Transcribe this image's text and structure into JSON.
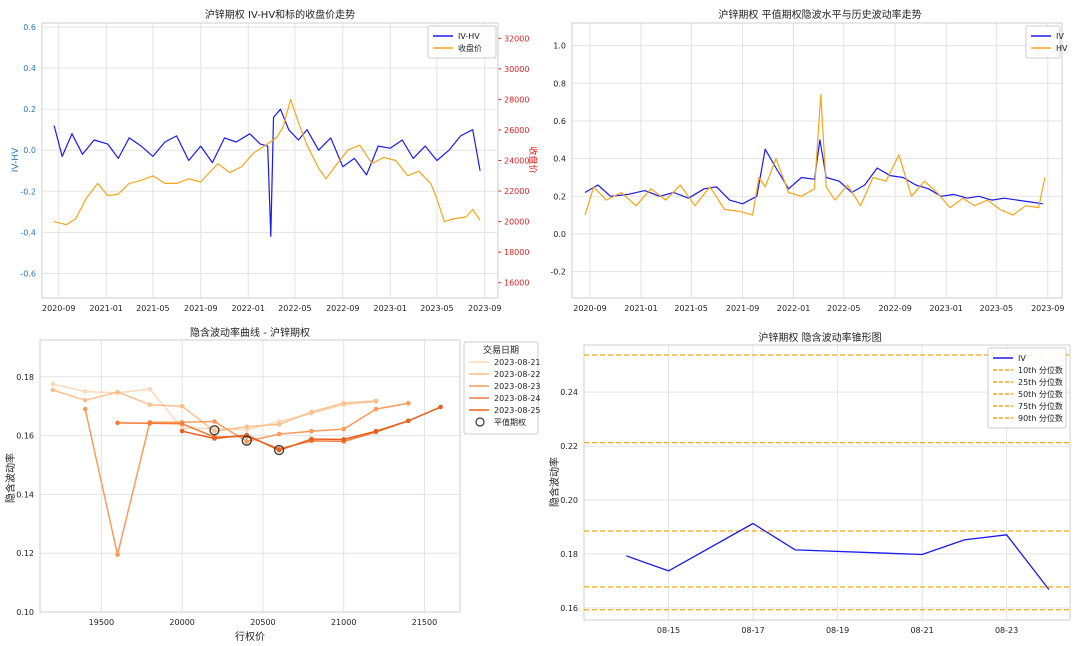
{
  "chart_data": [
    {
      "type": "line",
      "title": "沪锌期权 IV-HV和标的收盘价走势",
      "ylabel": "IV-HV",
      "y2label": "收盘价",
      "x_ticks": [
        "2020-09",
        "2021-01",
        "2021-05",
        "2021-09",
        "2022-01",
        "2022-05",
        "2022-09",
        "2023-01",
        "2023-05",
        "2023-09"
      ],
      "y_ticks": [
        "0.6",
        "0.4",
        "0.2",
        "0.0",
        "-0.2",
        "-0.4",
        "-0.6"
      ],
      "y2_ticks": [
        "32000",
        "30000",
        "28000",
        "26000",
        "24000",
        "22000",
        "20000",
        "18000",
        "16000"
      ],
      "ylim": [
        -0.72,
        0.62
      ],
      "y2lim": [
        15000,
        33000
      ],
      "grid": true,
      "legend_position": "top-right",
      "series": [
        {
          "name": "IV-HV",
          "color": "#1a1aee",
          "axis": "left",
          "x": [
            "2020-08-20",
            "2020-09-10",
            "2020-10-05",
            "2020-11-01",
            "2020-12-01",
            "2021-01-05",
            "2021-02-01",
            "2021-03-01",
            "2021-04-01",
            "2021-05-01",
            "2021-06-01",
            "2021-07-01",
            "2021-08-01",
            "2021-09-01",
            "2021-10-01",
            "2021-11-01",
            "2021-12-01",
            "2022-01-05",
            "2022-02-01",
            "2022-02-20",
            "2022-02-28",
            "2022-03-07",
            "2022-03-25",
            "2022-04-15",
            "2022-05-10",
            "2022-06-01",
            "2022-07-01",
            "2022-08-01",
            "2022-09-01",
            "2022-10-01",
            "2022-11-01",
            "2022-12-01",
            "2023-01-01",
            "2023-02-01",
            "2023-03-01",
            "2023-04-01",
            "2023-05-01",
            "2023-06-01",
            "2023-07-01",
            "2023-08-01",
            "2023-08-20"
          ],
          "values": [
            0.12,
            -0.03,
            0.08,
            -0.02,
            0.05,
            0.03,
            -0.04,
            0.06,
            0.02,
            -0.03,
            0.04,
            0.07,
            -0.05,
            0.02,
            -0.06,
            0.06,
            0.04,
            0.08,
            0.03,
            0.02,
            -0.42,
            0.16,
            0.2,
            0.1,
            0.05,
            0.1,
            0.0,
            0.06,
            -0.08,
            -0.04,
            -0.12,
            0.02,
            0.01,
            0.05,
            -0.04,
            0.02,
            -0.05,
            0.0,
            0.07,
            0.1,
            -0.1
          ]
        },
        {
          "name": "收盘价",
          "color": "#f5a51a",
          "axis": "right",
          "x": [
            "2020-08-20",
            "2020-09-20",
            "2020-10-15",
            "2020-11-10",
            "2020-12-10",
            "2021-01-05",
            "2021-02-01",
            "2021-03-01",
            "2021-04-01",
            "2021-05-01",
            "2021-06-01",
            "2021-07-01",
            "2021-08-01",
            "2021-09-01",
            "2021-10-15",
            "2021-11-15",
            "2021-12-15",
            "2022-01-15",
            "2022-02-15",
            "2022-03-15",
            "2022-04-01",
            "2022-04-20",
            "2022-05-10",
            "2022-06-01",
            "2022-07-01",
            "2022-07-20",
            "2022-08-15",
            "2022-09-15",
            "2022-10-15",
            "2022-11-15",
            "2022-12-15",
            "2023-01-15",
            "2023-02-15",
            "2023-03-15",
            "2023-04-15",
            "2023-05-01",
            "2023-05-20",
            "2023-06-15",
            "2023-07-15",
            "2023-08-01",
            "2023-08-20"
          ],
          "values": [
            20000,
            19800,
            20200,
            21500,
            22500,
            21700,
            21800,
            22500,
            22700,
            23000,
            22500,
            22500,
            22800,
            22600,
            23800,
            23200,
            23600,
            24500,
            25000,
            25500,
            26200,
            28000,
            26500,
            25000,
            23500,
            22800,
            23700,
            24700,
            25000,
            23800,
            24200,
            24000,
            23000,
            23300,
            22500,
            21500,
            20000,
            20200,
            20300,
            20800,
            20100
          ]
        }
      ]
    },
    {
      "type": "line",
      "title": "沪锌期权 平值期权隐波水平与历史波动率走势",
      "x_ticks": [
        "2020-09",
        "2021-01",
        "2021-05",
        "2021-09",
        "2022-01",
        "2022-05",
        "2022-09",
        "2023-01",
        "2023-05",
        "2023-09"
      ],
      "y_ticks": [
        "1.0",
        "0.8",
        "0.6",
        "0.4",
        "0.2",
        "0.0",
        "-0.2"
      ],
      "ylim": [
        -0.34,
        1.12
      ],
      "grid": true,
      "legend_position": "top-right",
      "series": [
        {
          "name": "IV",
          "color": "#1a1aee",
          "x": [
            "2020-08-20",
            "2020-09-20",
            "2020-10-20",
            "2020-12-01",
            "2021-01-10",
            "2021-02-15",
            "2021-03-20",
            "2021-04-25",
            "2021-06-01",
            "2021-07-01",
            "2021-08-01",
            "2021-09-01",
            "2021-10-05",
            "2021-10-25",
            "2021-11-20",
            "2021-12-20",
            "2022-01-20",
            "2022-02-20",
            "2022-03-05",
            "2022-03-20",
            "2022-04-20",
            "2022-05-20",
            "2022-06-20",
            "2022-07-20",
            "2022-08-20",
            "2022-09-20",
            "2022-10-20",
            "2022-11-20",
            "2022-12-20",
            "2023-01-20",
            "2023-02-20",
            "2023-03-20",
            "2023-04-20",
            "2023-05-20",
            "2023-06-20",
            "2023-07-20",
            "2023-08-20"
          ],
          "values": [
            0.22,
            0.26,
            0.2,
            0.21,
            0.23,
            0.2,
            0.22,
            0.19,
            0.24,
            0.25,
            0.18,
            0.16,
            0.2,
            0.45,
            0.35,
            0.24,
            0.3,
            0.29,
            0.5,
            0.3,
            0.28,
            0.22,
            0.26,
            0.35,
            0.31,
            0.3,
            0.26,
            0.24,
            0.2,
            0.21,
            0.19,
            0.2,
            0.18,
            0.19,
            0.18,
            0.17,
            0.16
          ]
        },
        {
          "name": "HV",
          "color": "#f5a51a",
          "x": [
            "2020-08-20",
            "2020-09-10",
            "2020-10-10",
            "2020-11-15",
            "2020-12-20",
            "2021-01-25",
            "2021-03-01",
            "2021-04-05",
            "2021-05-10",
            "2021-06-15",
            "2021-07-20",
            "2021-08-25",
            "2021-09-25",
            "2021-10-10",
            "2021-10-25",
            "2021-11-20",
            "2021-12-20",
            "2022-01-20",
            "2022-02-20",
            "2022-03-07",
            "2022-03-20",
            "2022-04-10",
            "2022-05-10",
            "2022-06-10",
            "2022-07-10",
            "2022-08-10",
            "2022-09-10",
            "2022-10-10",
            "2022-11-10",
            "2022-12-10",
            "2023-01-10",
            "2023-02-10",
            "2023-03-10",
            "2023-04-10",
            "2023-05-10",
            "2023-06-10",
            "2023-07-10",
            "2023-08-10",
            "2023-08-25"
          ],
          "values": [
            0.1,
            0.25,
            0.18,
            0.22,
            0.15,
            0.24,
            0.18,
            0.26,
            0.15,
            0.25,
            0.13,
            0.12,
            0.1,
            0.3,
            0.25,
            0.4,
            0.22,
            0.2,
            0.24,
            0.74,
            0.25,
            0.18,
            0.26,
            0.15,
            0.3,
            0.28,
            0.42,
            0.2,
            0.28,
            0.22,
            0.14,
            0.19,
            0.15,
            0.18,
            0.13,
            0.1,
            0.15,
            0.14,
            0.3
          ]
        }
      ]
    },
    {
      "type": "line",
      "title": "隐含波动率曲线 - 沪锌期权",
      "xlabel": "行权价",
      "ylabel": "隐含波动率",
      "x_ticks": [
        "19500",
        "20000",
        "20500",
        "21000",
        "21500"
      ],
      "y_ticks": [
        "0.18",
        "0.16",
        "0.14",
        "0.12",
        "0.10"
      ],
      "xlim": [
        19120,
        21720
      ],
      "ylim": [
        0.1,
        0.1925
      ],
      "grid": true,
      "legend_title": "交易日期",
      "legend_position": "top-right",
      "atm_label": "平值期权",
      "series": [
        {
          "name": "2023-08-21",
          "color": "#fcd9b8",
          "x": [
            19200,
            19400,
            19600,
            19800,
            20000,
            20200,
            20400,
            20600,
            20800,
            21000,
            21200
          ],
          "values": [
            0.1775,
            0.175,
            0.1745,
            0.1758,
            0.1625,
            0.1625,
            0.162,
            0.1648,
            0.1675,
            0.1705,
            0.1715
          ]
        },
        {
          "name": "2023-08-22",
          "color": "#fbbf8c",
          "x": [
            19200,
            19400,
            19600,
            19800,
            20000,
            20200,
            20400,
            20600,
            20800,
            21000,
            21200
          ],
          "values": [
            0.1755,
            0.172,
            0.1748,
            0.1705,
            0.17,
            0.1615,
            0.163,
            0.1638,
            0.168,
            0.171,
            0.1718
          ]
        },
        {
          "name": "2023-08-23",
          "color": "#fa9a5c",
          "x": [
            19400,
            19600,
            19800,
            20000,
            20200,
            20400,
            20600,
            20800,
            21000,
            21200,
            21400
          ],
          "values": [
            0.169,
            0.1195,
            0.1645,
            0.1645,
            0.1648,
            0.158,
            0.1605,
            0.1615,
            0.1622,
            0.169,
            0.171
          ]
        },
        {
          "name": "2023-08-24",
          "color": "#f47c38",
          "x": [
            19600,
            19800,
            20000,
            20200,
            20400,
            20600,
            20800,
            21000,
            21200,
            21400
          ],
          "values": [
            0.1643,
            0.1642,
            0.164,
            0.1595,
            0.1597,
            0.1555,
            0.1582,
            0.158,
            0.1612,
            0.165
          ]
        },
        {
          "name": "2023-08-25",
          "color": "#e8601f",
          "x": [
            20000,
            20200,
            20400,
            20600,
            20800,
            21000,
            21200,
            21400,
            21600
          ],
          "values": [
            0.1615,
            0.159,
            0.1602,
            0.155,
            0.1588,
            0.1587,
            0.1615,
            0.165,
            0.1697
          ]
        }
      ],
      "atm_points": [
        {
          "x": 20200,
          "y": 0.1618
        },
        {
          "x": 20400,
          "y": 0.1583
        },
        {
          "x": 20600,
          "y": 0.1551
        }
      ]
    },
    {
      "type": "line",
      "title": "沪锌期权 隐含波动率锥形图",
      "ylabel": "隐含波动率",
      "x_ticks": [
        "08-15",
        "08-17",
        "08-19",
        "08-21",
        "08-23"
      ],
      "y_ticks": [
        "0.24",
        "0.22",
        "0.20",
        "0.18",
        "0.16"
      ],
      "xlim": [
        "2023-08-13",
        "2023-08-24.5"
      ],
      "ylim": [
        0.1555,
        0.2575
      ],
      "grid": true,
      "legend_position": "top-right",
      "series": [
        {
          "name": "IV",
          "color": "#1a1aee",
          "x": [
            "2023-08-14",
            "2023-08-15",
            "2023-08-17",
            "2023-08-18",
            "2023-08-21",
            "2023-08-22",
            "2023-08-23",
            "2023-08-24"
          ],
          "values": [
            0.1793,
            0.1737,
            0.1913,
            0.1815,
            0.1798,
            0.1852,
            0.1871,
            0.1668
          ]
        }
      ],
      "percentiles": [
        {
          "name": "10th 分位数",
          "value": 0.1593
        },
        {
          "name": "25th 分位数",
          "value": 0.1678
        },
        {
          "name": "50th 分位数",
          "value": 0.1885
        },
        {
          "name": "75th 分位数",
          "value": 0.2213
        },
        {
          "name": "90th 分位数",
          "value": 0.2538
        }
      ],
      "percentile_color": "#f5a51a"
    }
  ]
}
